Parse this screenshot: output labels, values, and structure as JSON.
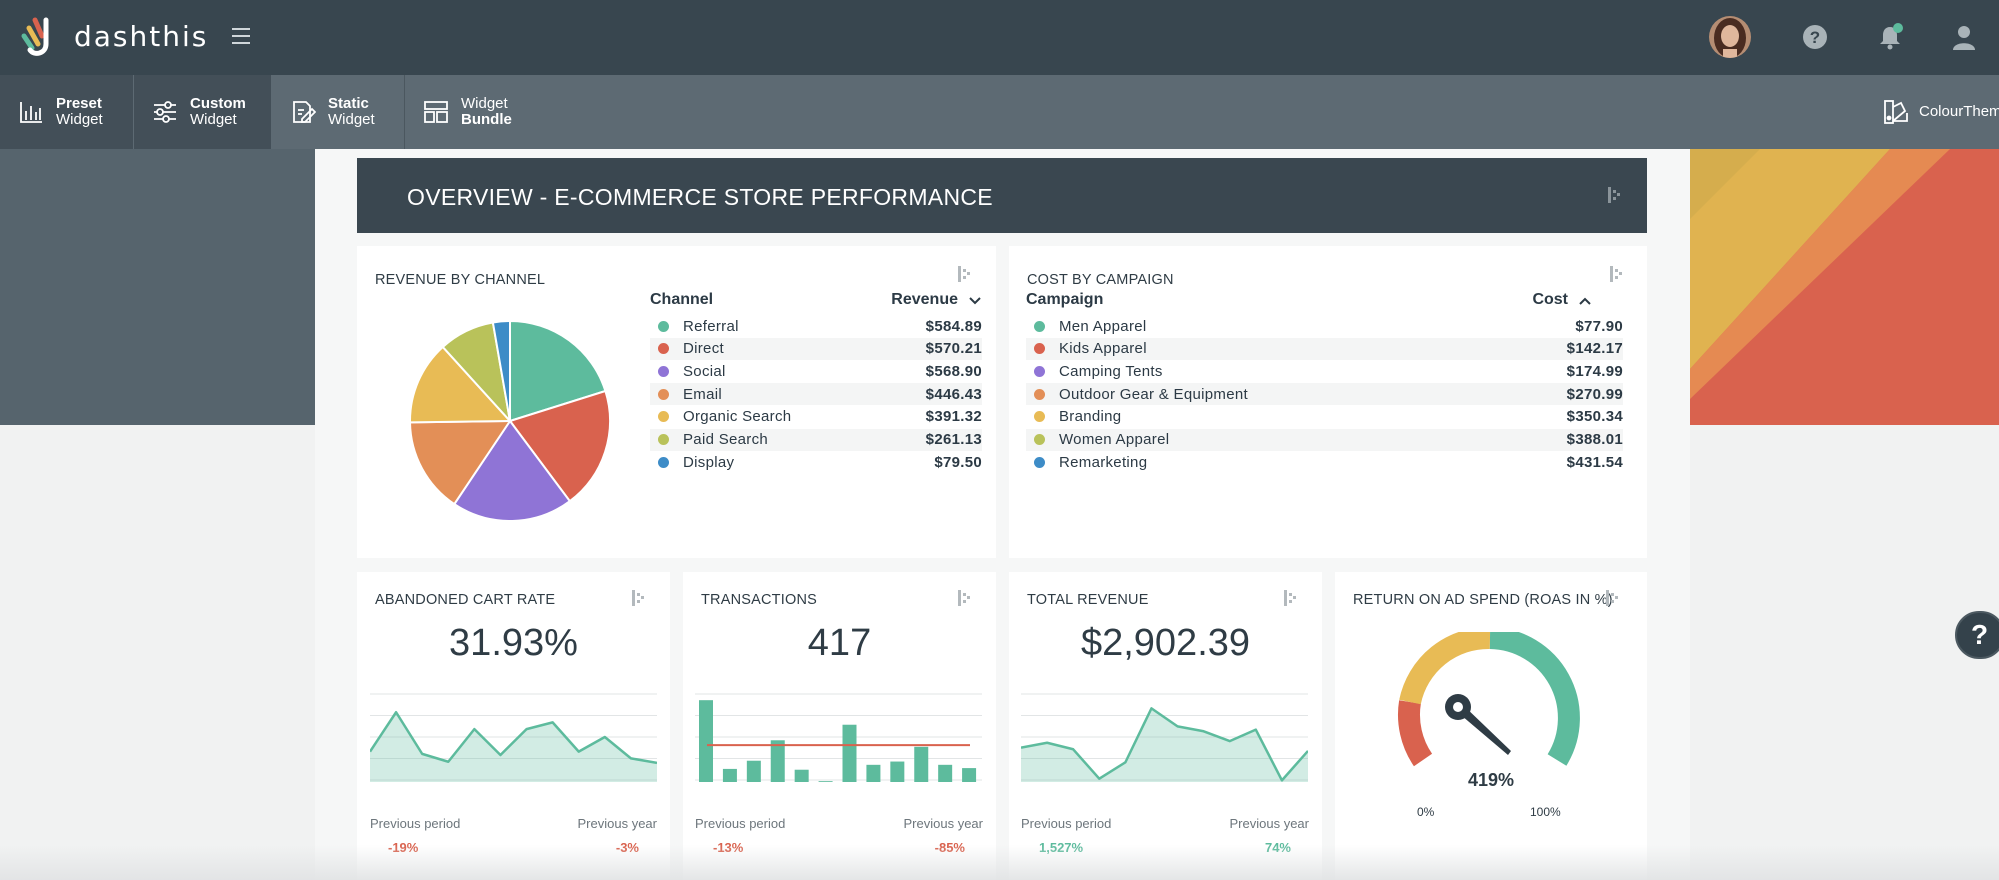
{
  "app": {
    "logo_text": "dashthis"
  },
  "toolbar": {
    "preset_bold": "Preset",
    "preset_rest": "Widget",
    "custom_bold": "Custom",
    "custom_rest": "Widget",
    "static_bold": "Static",
    "static_rest": "Widget",
    "bundle_rest": "Widget",
    "bundle_bold": "Bundle",
    "colour_line1": "Colour",
    "colour_line2": "Themes"
  },
  "dashboard": {
    "title": "OVERVIEW - E-COMMERCE STORE PERFORMANCE"
  },
  "revenue_by_channel": {
    "title": "REVENUE BY CHANNEL",
    "col1": "Channel",
    "col2": "Revenue",
    "rows": [
      {
        "name": "Referral",
        "value": "$584.89",
        "color": "#5dbb9d"
      },
      {
        "name": "Direct",
        "value": "$570.21",
        "color": "#d9624e"
      },
      {
        "name": "Social",
        "value": "$568.90",
        "color": "#8f74d6"
      },
      {
        "name": "Email",
        "value": "$446.43",
        "color": "#e38f57"
      },
      {
        "name": "Organic Search",
        "value": "$391.32",
        "color": "#e8bb55"
      },
      {
        "name": "Paid Search",
        "value": "$261.13",
        "color": "#b9c25a"
      },
      {
        "name": "Display",
        "value": "$79.50",
        "color": "#3d8cc7"
      }
    ]
  },
  "cost_by_campaign": {
    "title": "COST BY CAMPAIGN",
    "col1": "Campaign",
    "col2": "Cost",
    "rows": [
      {
        "name": "Men Apparel",
        "value": "$77.90",
        "color": "#5dbb9d"
      },
      {
        "name": "Kids Apparel",
        "value": "$142.17",
        "color": "#d9624e"
      },
      {
        "name": "Camping Tents",
        "value": "$174.99",
        "color": "#8f74d6"
      },
      {
        "name": "Outdoor Gear & Equipment",
        "value": "$270.99",
        "color": "#e38f57"
      },
      {
        "name": "Branding",
        "value": "$350.34",
        "color": "#e8bb55"
      },
      {
        "name": "Women Apparel",
        "value": "$388.01",
        "color": "#b9c25a"
      },
      {
        "name": "Remarketing",
        "value": "$431.54",
        "color": "#3d8cc7"
      }
    ]
  },
  "abandoned_cart": {
    "title": "ABANDONED CART RATE",
    "value": "31.93%",
    "prev_period_label": "Previous period",
    "prev_period_value": "-19%",
    "prev_year_label": "Previous year",
    "prev_year_value": "-3%"
  },
  "transactions": {
    "title": "TRANSACTIONS",
    "value": "417",
    "prev_period_label": "Previous period",
    "prev_period_value": "-13%",
    "prev_year_label": "Previous year",
    "prev_year_value": "-85%"
  },
  "total_revenue": {
    "title": "TOTAL REVENUE",
    "value": "$2,902.39",
    "prev_period_label": "Previous period",
    "prev_period_value": "1,527%",
    "prev_year_label": "Previous year",
    "prev_year_value": "74%"
  },
  "roas": {
    "title": "RETURN ON AD SPEND (ROAS IN %)",
    "value": "419%",
    "min_label": "0%",
    "max_label": "100%"
  },
  "colors": {
    "accent_green": "#5dbb9d",
    "accent_red": "#d9624e",
    "header_dark": "#3a4750"
  },
  "help_fab": "?",
  "chart_data": [
    {
      "type": "pie",
      "categories": [
        "Referral",
        "Direct",
        "Social",
        "Email",
        "Organic Search",
        "Paid Search",
        "Display"
      ],
      "values": [
        584.89,
        570.21,
        568.9,
        446.43,
        391.32,
        261.13,
        79.5
      ],
      "colors": [
        "#5dbb9d",
        "#d9624e",
        "#8f74d6",
        "#e38f57",
        "#e8bb55",
        "#b9c25a",
        "#3d8cc7"
      ]
    },
    {
      "type": "area",
      "values": [
        27,
        62,
        25,
        18,
        47,
        24,
        47,
        53,
        27,
        40,
        21,
        17
      ],
      "ylim": [
        0,
        80
      ]
    },
    {
      "type": "bar",
      "values": [
        100,
        16,
        26,
        51,
        15,
        1,
        70,
        21,
        25,
        43,
        21,
        17
      ],
      "reference": 45,
      "ylim": [
        0,
        110
      ]
    },
    {
      "type": "area",
      "values": [
        21,
        24,
        20,
        2,
        12,
        45,
        34,
        31,
        25,
        32,
        1,
        19
      ],
      "ylim": [
        0,
        55
      ]
    }
  ]
}
